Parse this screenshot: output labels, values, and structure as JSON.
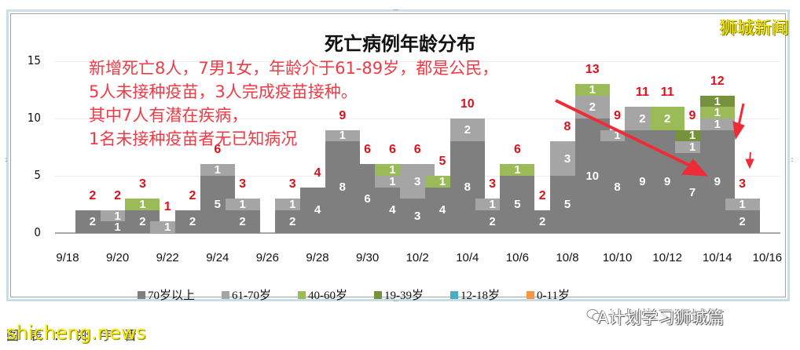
{
  "title": "死亡病例年龄分布",
  "brand": "狮城新闻",
  "annotation": {
    "lines": [
      "新增死亡8人，7男1女，年龄介于61-89岁，都是公民，",
      "5人未接种疫苗，3人完成疫苗接种。",
      "其中7人有潜在疾病，",
      "1名未接种疫苗者无已知病况"
    ]
  },
  "watermarks": {
    "bottom_left": "shicheng.news",
    "bottom_left_under": "图表：郑宇晋",
    "bottom_right": "A计划学习狮城篇"
  },
  "colors": {
    "70+": "#7f7f7f",
    "61-70": "#a5a5a5",
    "40-60": "#9bbb59",
    "19-39": "#76923c",
    "12-18": "#4bacc6",
    "0-11": "#f79646",
    "total_label": "#d9121c",
    "annotation": "#ef3b46",
    "arrow": "#ee2b36"
  },
  "legend": [
    {
      "label": "70岁以上",
      "key": "70+"
    },
    {
      "label": "61-70岁",
      "key": "61-70"
    },
    {
      "label": "40-60岁",
      "key": "40-60"
    },
    {
      "label": "19-39岁",
      "key": "19-39"
    },
    {
      "label": "12-18岁",
      "key": "12-18"
    },
    {
      "label": "0-11岁",
      "key": "0-11"
    }
  ],
  "chart_data": {
    "type": "bar",
    "stacked": true,
    "title": "死亡病例年龄分布",
    "xlabel": "",
    "ylabel": "",
    "ylim": [
      0,
      15
    ],
    "yticks": [
      0,
      5,
      10,
      15
    ],
    "grid": true,
    "legend_position": "bottom",
    "xtick_labels": [
      "9/18",
      "9/20",
      "9/22",
      "9/24",
      "9/26",
      "9/28",
      "9/30",
      "10/2",
      "10/4",
      "10/6",
      "10/8",
      "10/10",
      "10/12",
      "10/14",
      "10/16"
    ],
    "categories": [
      "9/18",
      "9/19",
      "9/20",
      "9/21",
      "9/22",
      "9/23",
      "9/24",
      "9/25",
      "9/26",
      "9/27",
      "9/28",
      "9/29",
      "9/30",
      "10/1",
      "10/2",
      "10/3",
      "10/4",
      "10/5",
      "10/6",
      "10/7",
      "10/8",
      "10/9",
      "10/10",
      "10/11",
      "10/12",
      "10/13",
      "10/14",
      "10/15",
      "10/16"
    ],
    "series": [
      {
        "name": "70岁以上",
        "values": [
          0,
          2,
          1,
          2,
          0,
          2,
          5,
          2,
          0,
          2,
          4,
          8,
          6,
          4,
          3,
          4,
          8,
          2,
          5,
          2,
          5,
          10,
          8,
          9,
          9,
          7,
          9,
          2,
          0
        ]
      },
      {
        "name": "61-70岁",
        "values": [
          0,
          0,
          1,
          0,
          1,
          0,
          1,
          1,
          0,
          1,
          0,
          1,
          0,
          1,
          3,
          0,
          2,
          1,
          0,
          0,
          3,
          2,
          1,
          2,
          0,
          1,
          1,
          1,
          0
        ]
      },
      {
        "name": "40-60岁",
        "values": [
          0,
          0,
          0,
          1,
          0,
          0,
          0,
          0,
          0,
          0,
          0,
          0,
          0,
          1,
          0,
          1,
          0,
          0,
          1,
          0,
          0,
          1,
          0,
          0,
          2,
          0,
          1,
          0,
          0
        ]
      },
      {
        "name": "19-39岁",
        "values": [
          0,
          0,
          0,
          0,
          0,
          0,
          0,
          0,
          0,
          0,
          0,
          0,
          0,
          0,
          0,
          0,
          0,
          0,
          0,
          0,
          0,
          0,
          0,
          0,
          0,
          1,
          1,
          0,
          0
        ]
      },
      {
        "name": "12-18岁",
        "values": [
          0,
          0,
          0,
          0,
          0,
          0,
          0,
          0,
          0,
          0,
          0,
          0,
          0,
          0,
          0,
          0,
          0,
          0,
          0,
          0,
          0,
          0,
          0,
          0,
          0,
          0,
          0,
          0,
          0
        ]
      },
      {
        "name": "0-11岁",
        "values": [
          0,
          0,
          0,
          0,
          0,
          0,
          0,
          0,
          0,
          0,
          0,
          0,
          0,
          0,
          0,
          0,
          0,
          0,
          0,
          0,
          0,
          0,
          0,
          0,
          0,
          0,
          0,
          0,
          0
        ]
      }
    ],
    "totals": [
      0,
      2,
      2,
      3,
      1,
      2,
      6,
      3,
      0,
      3,
      4,
      9,
      6,
      6,
      6,
      5,
      10,
      3,
      6,
      2,
      8,
      13,
      9,
      11,
      11,
      9,
      12,
      3,
      0
    ],
    "annotations": [
      "新增死亡8人，7男1女，年龄介于61-89岁，都是公民，",
      "5人未接种疫苗，3人完成疫苗接种。",
      "其中7人有潜在疾病，",
      "1名未接种疫苗者无已知病况"
    ]
  }
}
